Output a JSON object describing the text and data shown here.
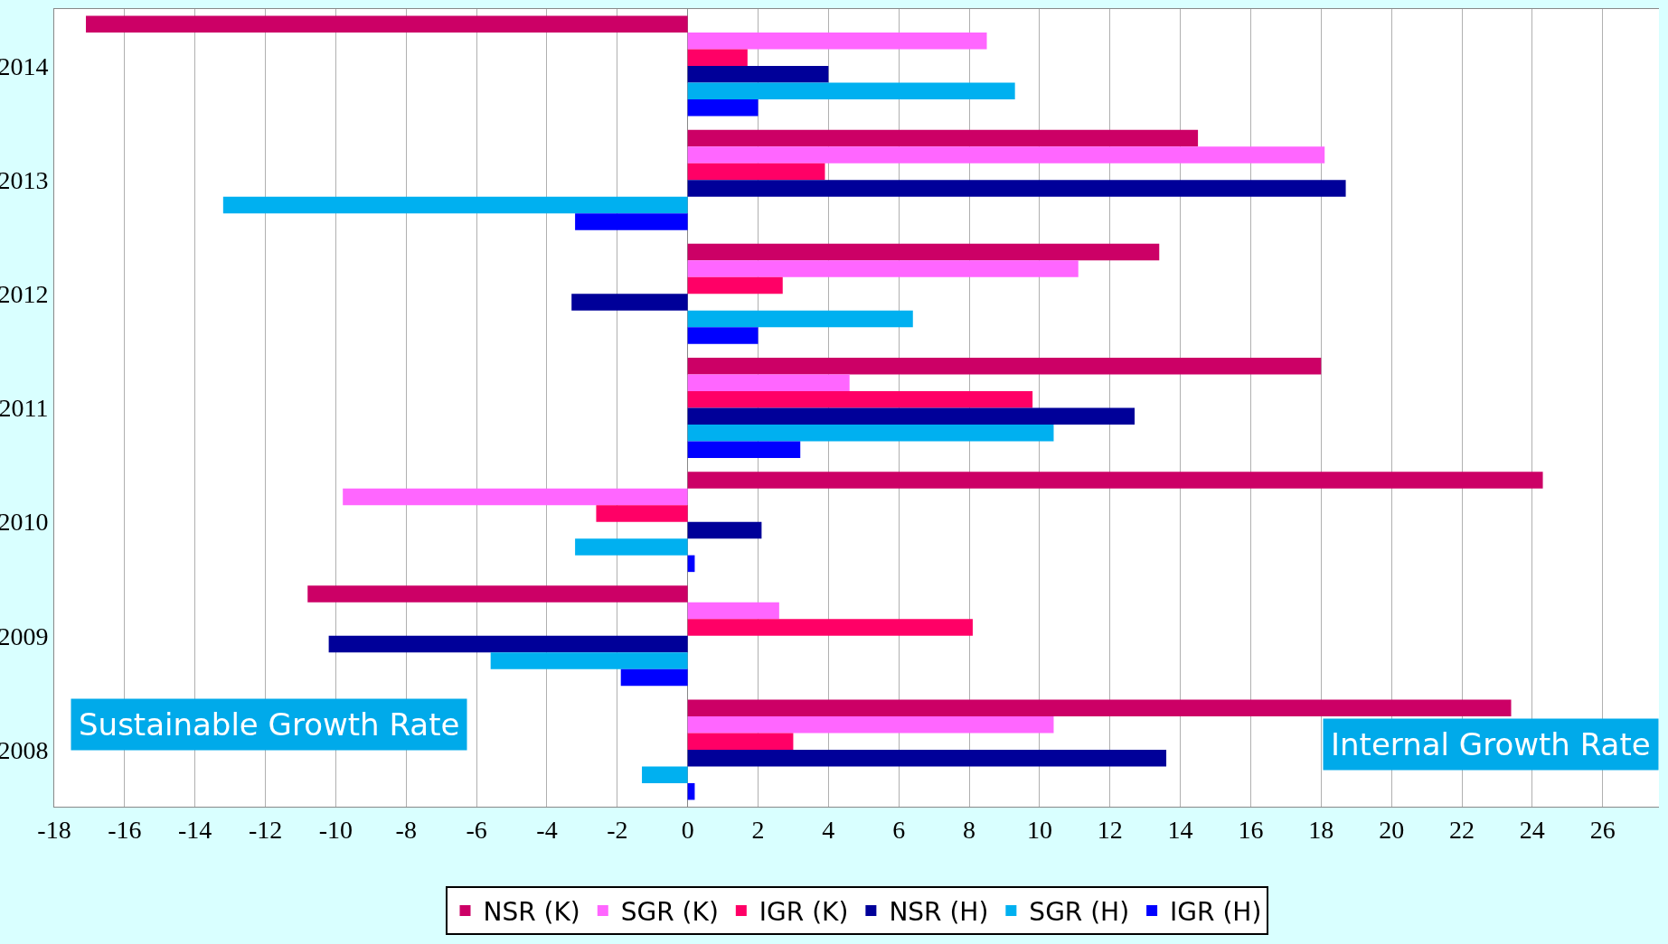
{
  "chart_data": {
    "type": "bar",
    "orientation": "horizontal",
    "categories": [
      "2014",
      "2013",
      "2012",
      "2011",
      "2010",
      "2009",
      "2008"
    ],
    "series": [
      {
        "name": "NSR (K)",
        "color": "#cc0066",
        "values": [
          -17.1,
          14.5,
          13.4,
          18.0,
          24.3,
          -10.8,
          23.4
        ]
      },
      {
        "name": "SGR (K)",
        "color": "#ff66ff",
        "values": [
          8.5,
          18.1,
          11.1,
          4.6,
          -9.8,
          2.6,
          10.4
        ]
      },
      {
        "name": "IGR (K)",
        "color": "#ff0066",
        "values": [
          1.7,
          3.9,
          2.7,
          9.8,
          -2.6,
          8.1,
          3.0
        ]
      },
      {
        "name": "NSR (H)",
        "color": "#000099",
        "values": [
          4.0,
          18.7,
          -3.3,
          12.7,
          2.1,
          -10.2,
          13.6
        ]
      },
      {
        "name": "SGR (H)",
        "color": "#00b0f0",
        "values": [
          9.3,
          -13.2,
          6.4,
          10.4,
          -3.2,
          -5.6,
          -1.3
        ]
      },
      {
        "name": "IGR (H)",
        "color": "#0000ff",
        "values": [
          2.0,
          -3.2,
          2.0,
          3.2,
          0.2,
          -1.9,
          0.2
        ]
      }
    ],
    "xlim": [
      -18,
      27.6
    ],
    "xticks": [
      {
        "value": -18,
        "label": "-18"
      },
      {
        "value": -16,
        "label": "-16"
      },
      {
        "value": -14,
        "label": "-14"
      },
      {
        "value": -12,
        "label": "-12"
      },
      {
        "value": -10,
        "label": "-10"
      },
      {
        "value": -8,
        "label": "-8"
      },
      {
        "value": -6,
        "label": "-6"
      },
      {
        "value": -4,
        "label": "-4"
      },
      {
        "value": -2,
        "label": "-2"
      },
      0,
      2,
      4,
      6,
      8,
      10,
      12,
      14,
      16,
      18,
      20,
      22,
      24,
      26
    ],
    "grid": "x",
    "legend": "bottom",
    "annotations": [
      "Sustainable Growth Rate",
      "Internal Growth Rate"
    ]
  }
}
